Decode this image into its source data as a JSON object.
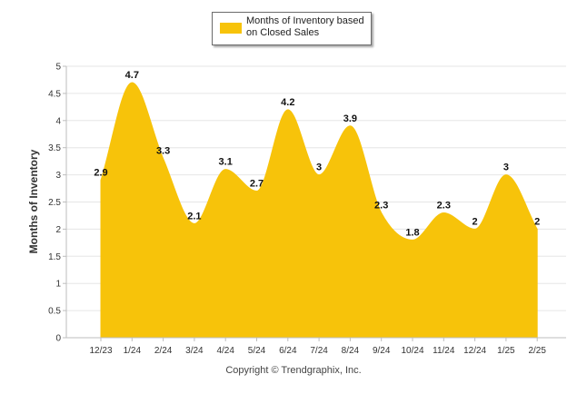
{
  "colors": {
    "area": "#F7C30A",
    "grid": "#e6e6e6",
    "axis": "#bdbdbd",
    "text": "#333333"
  },
  "legend": {
    "label": "Months of Inventory based on Closed Sales"
  },
  "footer": {
    "copyright": "Copyright © Trendgraphix, Inc."
  },
  "chart_data": {
    "type": "area",
    "smooth": true,
    "categories": [
      "12/23",
      "1/24",
      "2/24",
      "3/24",
      "4/24",
      "5/24",
      "6/24",
      "7/24",
      "8/24",
      "9/24",
      "10/24",
      "11/24",
      "12/24",
      "1/25",
      "2/25"
    ],
    "series": [
      {
        "name": "Months of Inventory based on Closed Sales",
        "values": [
          2.9,
          4.7,
          3.3,
          2.1,
          3.1,
          2.7,
          4.2,
          3,
          3.9,
          2.3,
          1.8,
          2.3,
          2,
          3,
          2
        ]
      }
    ],
    "ylabel": "Months of Inventory",
    "xlabel": "",
    "ylim": [
      0,
      5
    ],
    "yticks": [
      "0",
      "0.5",
      "1",
      "1.5",
      "2",
      "2.5",
      "3",
      "3.5",
      "4",
      "4.5",
      "5"
    ],
    "grid": true,
    "legend_position": "top-center",
    "data_labels": true
  }
}
